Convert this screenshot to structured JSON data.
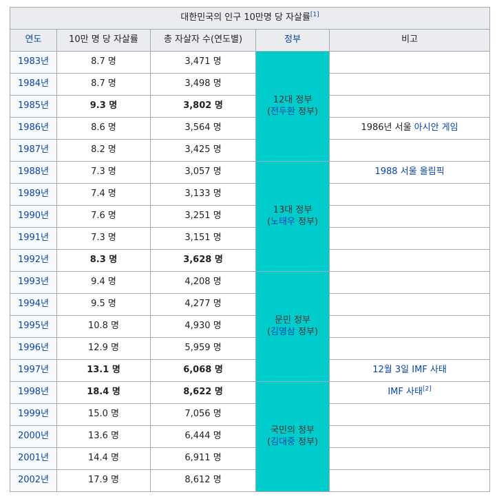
{
  "table": {
    "caption": "대한민국의 인구 10만명 당 자살률",
    "caption_ref": "[1]",
    "headers": {
      "year": "연도",
      "rate": "10만 명 당 자살률",
      "total": "총 자살자 수(연도별)",
      "government": "정부",
      "note": "비고"
    },
    "rows": [
      {
        "year": "1983년",
        "rate": "8.7 명",
        "total": "3,471 명",
        "bold": false
      },
      {
        "year": "1984년",
        "rate": "8.7 명",
        "total": "3,498 명",
        "bold": false
      },
      {
        "year": "1985년",
        "rate": "9.3 명",
        "total": "3,802 명",
        "bold": true
      },
      {
        "year": "1986년",
        "rate": "8.6 명",
        "total": "3,564 명",
        "bold": false
      },
      {
        "year": "1987년",
        "rate": "8.2 명",
        "total": "3,425 명",
        "bold": false
      },
      {
        "year": "1988년",
        "rate": "7.3 명",
        "total": "3,057 명",
        "bold": false
      },
      {
        "year": "1989년",
        "rate": "7.4 명",
        "total": "3,133 명",
        "bold": false
      },
      {
        "year": "1990년",
        "rate": "7.6 명",
        "total": "3,251 명",
        "bold": false
      },
      {
        "year": "1991년",
        "rate": "7.3 명",
        "total": "3,151 명",
        "bold": false
      },
      {
        "year": "1992년",
        "rate": "8.3 명",
        "total": "3,628 명",
        "bold": true
      },
      {
        "year": "1993년",
        "rate": "9.4 명",
        "total": "4,208 명",
        "bold": false
      },
      {
        "year": "1994년",
        "rate": "9.5 명",
        "total": "4,277 명",
        "bold": false
      },
      {
        "year": "1995년",
        "rate": "10.8 명",
        "total": "4,930 명",
        "bold": false
      },
      {
        "year": "1996년",
        "rate": "12.9 명",
        "total": "5,959 명",
        "bold": false
      },
      {
        "year": "1997년",
        "rate": "13.1 명",
        "total": "6,068 명",
        "bold": true
      },
      {
        "year": "1998년",
        "rate": "18.4 명",
        "total": "8,622 명",
        "bold": true
      },
      {
        "year": "1999년",
        "rate": "15.0 명",
        "total": "7,056 명",
        "bold": false
      },
      {
        "year": "2000년",
        "rate": "13.6 명",
        "total": "6,444 명",
        "bold": false
      },
      {
        "year": "2001년",
        "rate": "14.4 명",
        "total": "6,911 명",
        "bold": false
      },
      {
        "year": "2002년",
        "rate": "17.9 명",
        "total": "8,612 명",
        "bold": false
      }
    ],
    "governments": [
      {
        "name": "12대 정부",
        "president": "전두환",
        "suffix": " 정부",
        "start": 0,
        "span": 5
      },
      {
        "name": "13대 정부",
        "president": "노태우",
        "suffix": " 정부",
        "start": 5,
        "span": 5
      },
      {
        "name": "문민 정부",
        "president": "김영삼",
        "suffix": " 정부",
        "start": 10,
        "span": 5
      },
      {
        "name": "국민의 정부",
        "president": "김대중",
        "suffix": " 정부",
        "start": 15,
        "span": 5
      }
    ],
    "notes": [
      {
        "row": 3,
        "text": "1986년 서울 ",
        "link": "아시안 게임",
        "ref": ""
      },
      {
        "row": 5,
        "text": "",
        "link": "1988 서울 올림픽",
        "ref": ""
      },
      {
        "row": 14,
        "text": "",
        "link": "12월 3일 IMF 사태",
        "ref": ""
      },
      {
        "row": 15,
        "text": "",
        "link": "IMF 사태",
        "ref": "[2]"
      }
    ]
  },
  "colors": {
    "government_bg": "#00cccc",
    "link": "#0645ad",
    "header_bg": "#eaecf0",
    "border": "#a2a9b1"
  }
}
